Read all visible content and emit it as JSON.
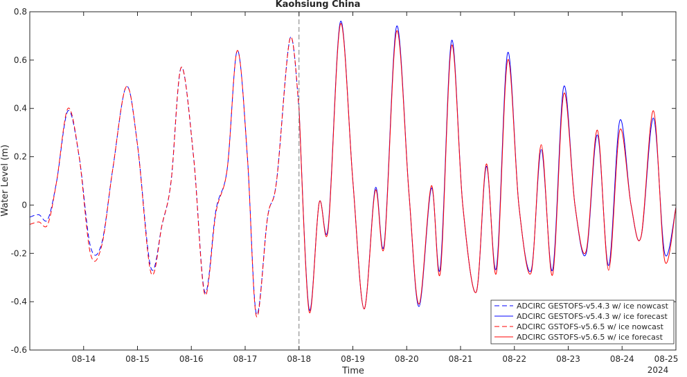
{
  "chart_data": {
    "type": "line",
    "title": "Kaohsiung China",
    "xlabel": "Time",
    "ylabel": "Water Level (m)",
    "year_label": "2024",
    "xlim": [
      "2024-08-13 00:00",
      "2024-08-25 00:00"
    ],
    "ylim": [
      -0.6,
      0.8
    ],
    "yticks": [
      -0.6,
      -0.4,
      -0.2,
      0,
      0.2,
      0.4,
      0.6,
      0.8
    ],
    "ytick_labels": [
      "-0.6",
      "-0.4",
      "-0.2",
      "0",
      "0.2",
      "0.4",
      "0.6",
      "0.8"
    ],
    "xtick_labels": [
      "08-14",
      "08-15",
      "08-16",
      "08-17",
      "08-18",
      "08-19",
      "08-20",
      "08-21",
      "08-22",
      "08-23",
      "08-24",
      "08-25"
    ],
    "nowcast_forecast_split": "2024-08-18 00:00",
    "grid": false,
    "legend_position": "bottom-right",
    "series": [
      {
        "name": "ADCIRC GESTOFS-v5.4.3 w/ ice nowcast",
        "color": "#0000ff",
        "style": "dashed",
        "points": [
          [
            "08-13 00:00",
            -0.05
          ],
          [
            "08-13 04:00",
            -0.04
          ],
          [
            "08-13 08:00",
            -0.06
          ],
          [
            "08-13 12:00",
            0.1
          ],
          [
            "08-13 17:00",
            0.39
          ],
          [
            "08-13 22:00",
            0.2
          ],
          [
            "08-14 03:00",
            -0.17
          ],
          [
            "08-14 08:00",
            -0.16
          ],
          [
            "08-14 13:00",
            0.15
          ],
          [
            "08-14 19:00",
            0.49
          ],
          [
            "08-15 00:00",
            0.25
          ],
          [
            "08-15 06:00",
            -0.26
          ],
          [
            "08-15 11:00",
            -0.08
          ],
          [
            "08-15 15:00",
            0.1
          ],
          [
            "08-15 19:30",
            0.57
          ],
          [
            "08-16 01:00",
            0.2
          ],
          [
            "08-16 06:00",
            -0.36
          ],
          [
            "08-16 11:00",
            -0.02
          ],
          [
            "08-16 16:00",
            0.15
          ],
          [
            "08-16 20:30",
            0.64
          ],
          [
            "08-17 01:00",
            0.2
          ],
          [
            "08-17 05:00",
            -0.45
          ],
          [
            "08-17 10:00",
            -0.05
          ],
          [
            "08-17 14:00",
            0.1
          ],
          [
            "08-17 20:00",
            0.69
          ],
          [
            "08-18 00:00",
            0.4
          ]
        ]
      },
      {
        "name": "ADCIRC GESTOFS-v5.4.3 w/ ice forecast",
        "color": "#0000ff",
        "style": "solid",
        "points": [
          [
            "08-18 00:00",
            0.4
          ],
          [
            "08-18 04:30",
            -0.43
          ],
          [
            "08-18 09:00",
            0.01
          ],
          [
            "08-18 13:00",
            -0.09
          ],
          [
            "08-18 18:30",
            0.76
          ],
          [
            "08-19 00:00",
            0.1
          ],
          [
            "08-19 05:00",
            -0.43
          ],
          [
            "08-19 10:00",
            0.07
          ],
          [
            "08-19 14:00",
            -0.16
          ],
          [
            "08-19 19:30",
            0.74
          ],
          [
            "08-20 01:00",
            0.05
          ],
          [
            "08-20 05:30",
            -0.42
          ],
          [
            "08-20 11:00",
            0.07
          ],
          [
            "08-20 15:00",
            -0.26
          ],
          [
            "08-20 20:00",
            0.68
          ],
          [
            "08-21 01:00",
            0.0
          ],
          [
            "08-21 07:00",
            -0.36
          ],
          [
            "08-21 11:30",
            0.16
          ],
          [
            "08-21 16:00",
            -0.26
          ],
          [
            "08-21 21:00",
            0.63
          ],
          [
            "08-22 02:00",
            0.0
          ],
          [
            "08-22 07:30",
            -0.27
          ],
          [
            "08-22 12:00",
            0.23
          ],
          [
            "08-22 17:00",
            -0.27
          ],
          [
            "08-22 22:00",
            0.49
          ],
          [
            "08-23 03:00",
            0.0
          ],
          [
            "08-23 08:00",
            -0.2
          ],
          [
            "08-23 13:00",
            0.29
          ],
          [
            "08-23 18:00",
            -0.25
          ],
          [
            "08-23 23:00",
            0.35
          ],
          [
            "08-24 04:00",
            0.0
          ],
          [
            "08-24 08:30",
            -0.13
          ],
          [
            "08-24 14:00",
            0.36
          ],
          [
            "08-24 19:00",
            -0.2
          ],
          [
            "08-25 00:00",
            -0.01
          ]
        ]
      },
      {
        "name": "ADCIRC GSTOFS-v5.6.5 w/ ice nowcast",
        "color": "#ff0000",
        "style": "dashed",
        "points": [
          [
            "08-13 00:00",
            -0.08
          ],
          [
            "08-13 04:00",
            -0.07
          ],
          [
            "08-13 08:00",
            -0.08
          ],
          [
            "08-13 12:00",
            0.1
          ],
          [
            "08-13 17:00",
            0.4
          ],
          [
            "08-13 22:00",
            0.2
          ],
          [
            "08-14 03:00",
            -0.2
          ],
          [
            "08-14 08:00",
            -0.17
          ],
          [
            "08-14 13:00",
            0.15
          ],
          [
            "08-14 19:00",
            0.49
          ],
          [
            "08-15 00:00",
            0.25
          ],
          [
            "08-15 06:00",
            -0.28
          ],
          [
            "08-15 11:00",
            -0.08
          ],
          [
            "08-15 15:00",
            0.1
          ],
          [
            "08-15 19:30",
            0.57
          ],
          [
            "08-16 01:00",
            0.2
          ],
          [
            "08-16 06:00",
            -0.37
          ],
          [
            "08-16 11:00",
            -0.03
          ],
          [
            "08-16 16:00",
            0.15
          ],
          [
            "08-16 20:30",
            0.64
          ],
          [
            "08-17 01:00",
            0.2
          ],
          [
            "08-17 05:00",
            -0.46
          ],
          [
            "08-17 10:00",
            -0.05
          ],
          [
            "08-17 14:00",
            0.1
          ],
          [
            "08-17 20:00",
            0.69
          ],
          [
            "08-18 00:00",
            0.4
          ]
        ]
      },
      {
        "name": "ADCIRC GSTOFS-v5.6.5 w/ ice forecast",
        "color": "#ff0000",
        "style": "solid",
        "points": [
          [
            "08-18 00:00",
            0.4
          ],
          [
            "08-18 04:30",
            -0.44
          ],
          [
            "08-18 09:00",
            0.01
          ],
          [
            "08-18 13:00",
            -0.1
          ],
          [
            "08-18 18:30",
            0.75
          ],
          [
            "08-19 00:00",
            0.1
          ],
          [
            "08-19 05:00",
            -0.43
          ],
          [
            "08-19 10:00",
            0.06
          ],
          [
            "08-19 14:00",
            -0.17
          ],
          [
            "08-19 19:30",
            0.72
          ],
          [
            "08-20 01:00",
            0.05
          ],
          [
            "08-20 05:30",
            -0.41
          ],
          [
            "08-20 11:00",
            0.08
          ],
          [
            "08-20 15:00",
            -0.28
          ],
          [
            "08-20 20:00",
            0.66
          ],
          [
            "08-21 01:00",
            0.0
          ],
          [
            "08-21 07:00",
            -0.36
          ],
          [
            "08-21 11:30",
            0.17
          ],
          [
            "08-21 16:00",
            -0.28
          ],
          [
            "08-21 21:00",
            0.6
          ],
          [
            "08-22 02:00",
            0.0
          ],
          [
            "08-22 07:30",
            -0.28
          ],
          [
            "08-22 12:00",
            0.25
          ],
          [
            "08-22 17:00",
            -0.29
          ],
          [
            "08-22 22:00",
            0.46
          ],
          [
            "08-23 03:00",
            0.0
          ],
          [
            "08-23 08:00",
            -0.19
          ],
          [
            "08-23 13:00",
            0.31
          ],
          [
            "08-23 18:00",
            -0.27
          ],
          [
            "08-23 23:00",
            0.31
          ],
          [
            "08-24 04:00",
            0.0
          ],
          [
            "08-24 08:30",
            -0.13
          ],
          [
            "08-24 14:00",
            0.39
          ],
          [
            "08-24 19:00",
            -0.23
          ],
          [
            "08-25 00:00",
            -0.01
          ]
        ]
      }
    ]
  }
}
